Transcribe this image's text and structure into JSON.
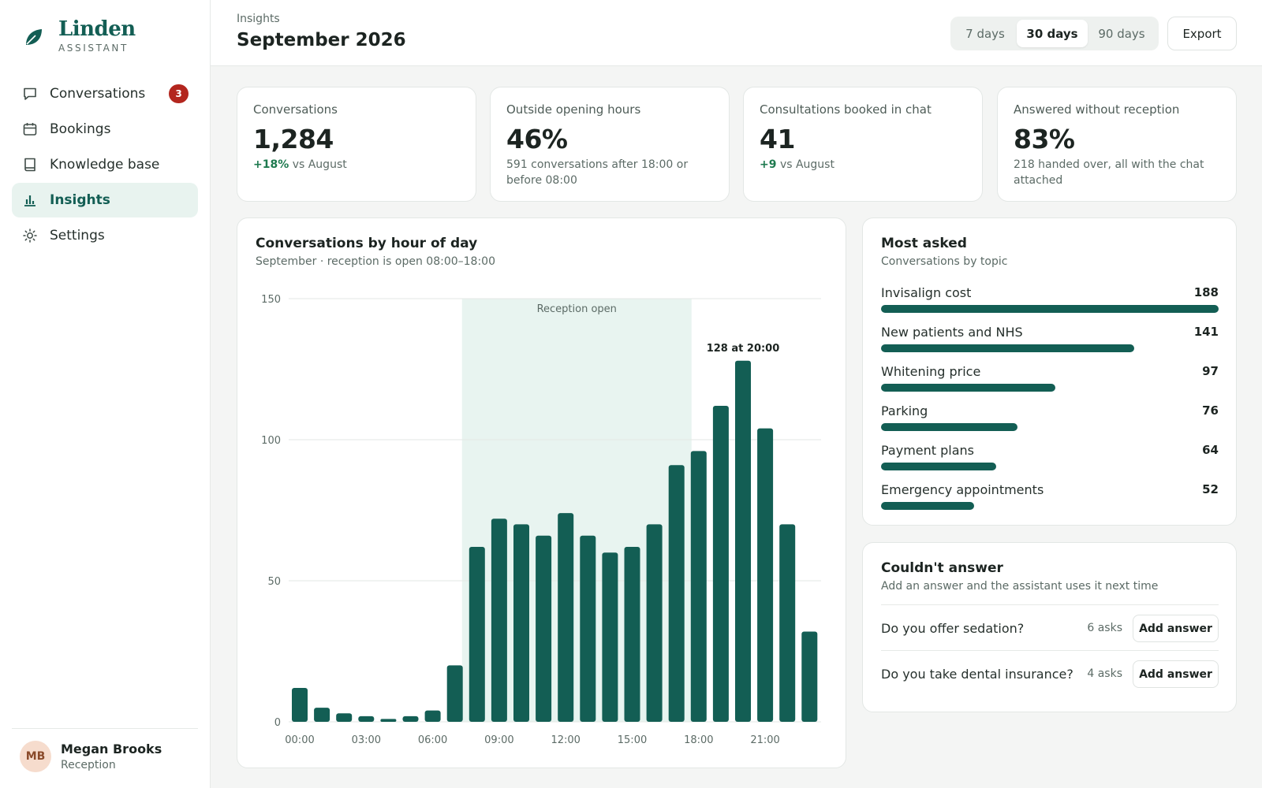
{
  "brand": {
    "name": "Linden",
    "subtitle": "ASSISTANT",
    "logo_icon": "leaf-icon",
    "accent": "#135e54"
  },
  "sidebar": {
    "items": [
      {
        "label": "Conversations",
        "icon": "chat-bubble-icon",
        "badge": "3",
        "active": false
      },
      {
        "label": "Bookings",
        "icon": "calendar-icon",
        "active": false
      },
      {
        "label": "Knowledge base",
        "icon": "book-icon",
        "active": true
      },
      {
        "label": "Insights",
        "icon": "bar-chart-icon",
        "active": true
      },
      {
        "label": "Settings",
        "icon": "gear-icon",
        "active": false
      }
    ],
    "user": {
      "initials": "MB",
      "name": "Megan Brooks",
      "role": "Reception"
    }
  },
  "header": {
    "breadcrumb": "Insights",
    "title": "September 2026",
    "ranges": [
      "7 days",
      "30 days",
      "90 days"
    ],
    "selected_range": "30 days",
    "export_label": "Export"
  },
  "kpis": [
    {
      "label": "Conversations",
      "value": "1,284",
      "delta": "+18%",
      "note": "vs August"
    },
    {
      "label": "Outside opening hours",
      "value": "46%",
      "note": "591 conversations after 18:00 or before 08:00"
    },
    {
      "label": "Consultations booked in chat",
      "value": "41",
      "delta": "+9",
      "note": "vs August"
    },
    {
      "label": "Answered without reception",
      "value": "83%",
      "note": "218 handed over, all with the chat attached"
    }
  ],
  "hourly_chart": {
    "title": "Conversations by hour of day",
    "subtitle": "September · reception is open 08:00–18:00"
  },
  "chart_data": {
    "type": "bar",
    "x": [
      "00:00",
      "01:00",
      "02:00",
      "03:00",
      "04:00",
      "05:00",
      "06:00",
      "07:00",
      "08:00",
      "09:00",
      "10:00",
      "11:00",
      "12:00",
      "13:00",
      "14:00",
      "15:00",
      "16:00",
      "17:00",
      "18:00",
      "19:00",
      "20:00",
      "21:00",
      "22:00",
      "23:00"
    ],
    "values": [
      12,
      5,
      3,
      2,
      1,
      2,
      4,
      20,
      62,
      72,
      70,
      66,
      74,
      66,
      60,
      62,
      70,
      91,
      96,
      112,
      128,
      104,
      70,
      32
    ],
    "x_ticks": [
      "00:00",
      "03:00",
      "06:00",
      "09:00",
      "12:00",
      "15:00",
      "18:00",
      "21:00"
    ],
    "y_ticks": [
      "0",
      "50",
      "100",
      "150"
    ],
    "ylim": [
      0,
      150
    ],
    "grid": true,
    "shaded_band": {
      "label": "Reception open",
      "from": "08:00",
      "to": "18:00"
    },
    "annotation": "128 at 20:00",
    "bar_color": "#135e54",
    "band_color": "#e8f4f0"
  },
  "most_asked": {
    "title": "Most asked",
    "subtitle": "Conversations by topic",
    "topics": [
      {
        "name": "Invisalign cost",
        "count": 188
      },
      {
        "name": "New patients and NHS",
        "count": 141
      },
      {
        "name": "Whitening price",
        "count": 97
      },
      {
        "name": "Parking",
        "count": 76
      },
      {
        "name": "Payment plans",
        "count": 64
      },
      {
        "name": "Emergency appointments",
        "count": 52
      }
    ]
  },
  "unanswered": {
    "title": "Couldn't answer",
    "subtitle": "Add an answer and the assistant uses it next time",
    "questions": [
      {
        "text": "Do you offer sedation?",
        "asks": "6 asks",
        "action": "Add answer"
      },
      {
        "text": "Do you take dental insurance?",
        "asks": "4 asks",
        "action": "Add answer"
      }
    ]
  }
}
